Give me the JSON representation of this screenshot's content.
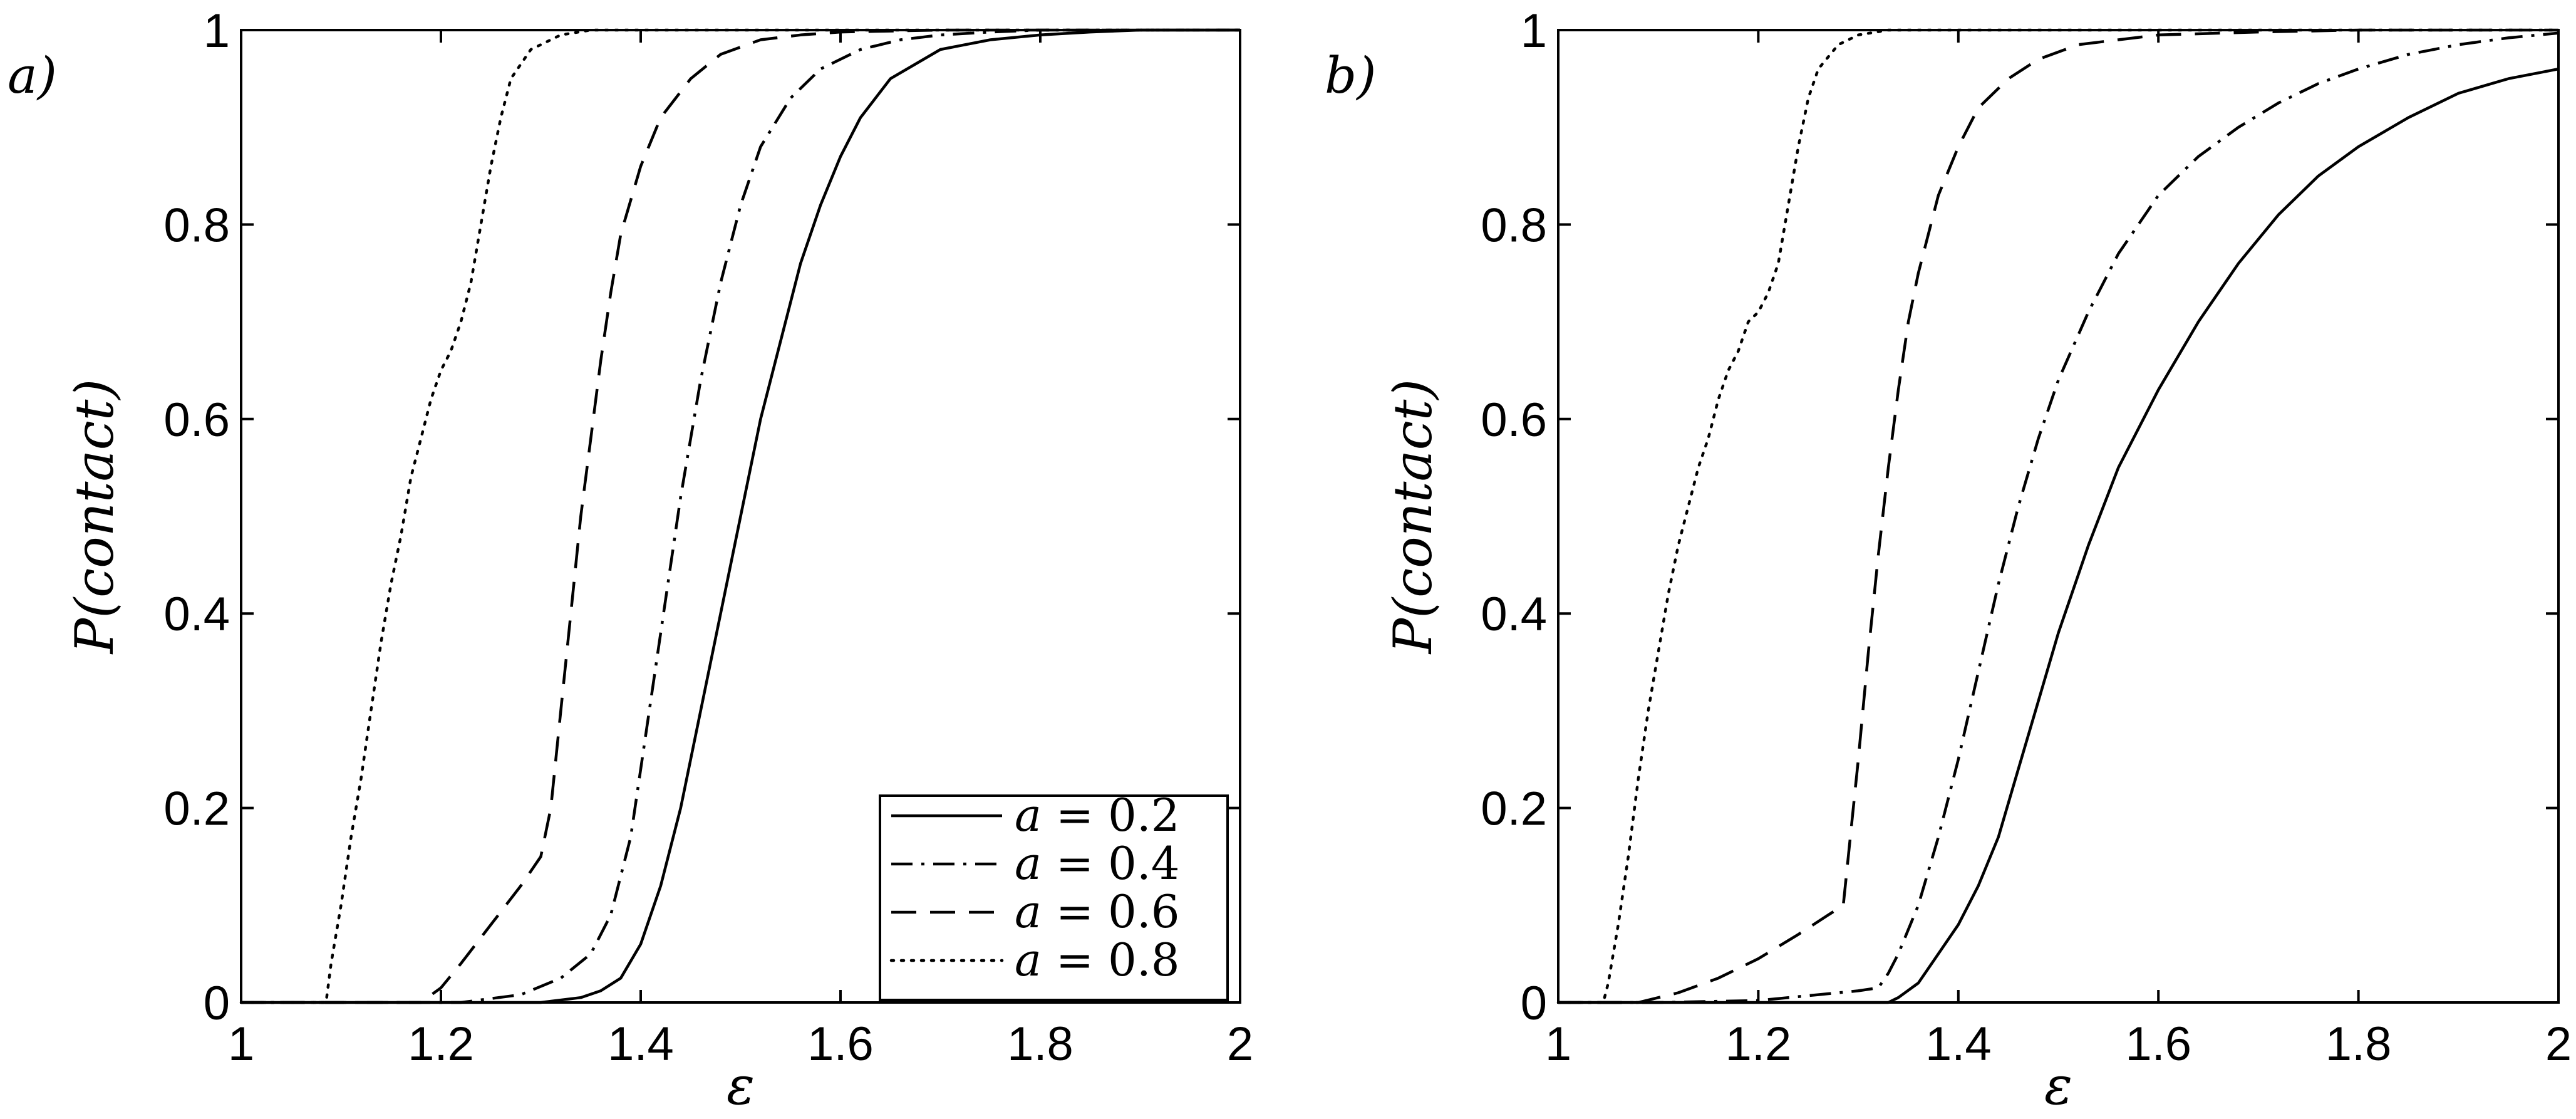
{
  "chart_data": [
    {
      "type": "line",
      "panel_label": "a)",
      "xlabel": "ε",
      "ylabel": "P(contact)",
      "xlim": [
        1,
        2
      ],
      "ylim": [
        0,
        1
      ],
      "xticks": [
        1,
        1.2,
        1.4,
        1.6,
        1.8,
        2
      ],
      "xtick_labels": [
        "1",
        "1.2",
        "1.4",
        "1.6",
        "1.8",
        "2"
      ],
      "yticks": [
        0,
        0.2,
        0.4,
        0.6,
        0.8,
        1
      ],
      "ytick_labels": [
        "0",
        "0.2",
        "0.4",
        "0.6",
        "0.8",
        "1"
      ],
      "grid": false,
      "legend": {
        "position": "bottom-right",
        "entries": [
          {
            "var": "a",
            "text": " = 0.2",
            "style": "solid"
          },
          {
            "var": "a",
            "text": " = 0.4",
            "style": "dash-dot"
          },
          {
            "var": "a",
            "text": " = 0.6",
            "style": "dashed"
          },
          {
            "var": "a",
            "text": " = 0.8",
            "style": "dotted"
          }
        ]
      },
      "series": [
        {
          "style": "solid",
          "x": [
            1.0,
            1.3,
            1.34,
            1.36,
            1.38,
            1.4,
            1.42,
            1.44,
            1.46,
            1.48,
            1.5,
            1.52,
            1.54,
            1.56,
            1.58,
            1.6,
            1.62,
            1.65,
            1.7,
            1.75,
            1.8,
            1.85,
            1.9,
            2.0
          ],
          "y": [
            0,
            0,
            0.005,
            0.012,
            0.025,
            0.06,
            0.12,
            0.2,
            0.3,
            0.4,
            0.5,
            0.6,
            0.68,
            0.76,
            0.82,
            0.87,
            0.91,
            0.95,
            0.98,
            0.99,
            0.995,
            0.998,
            1.0,
            1.0
          ]
        },
        {
          "style": "dash-dot",
          "x": [
            1.0,
            1.22,
            1.28,
            1.32,
            1.35,
            1.37,
            1.39,
            1.4,
            1.42,
            1.44,
            1.46,
            1.48,
            1.5,
            1.52,
            1.55,
            1.58,
            1.62,
            1.66,
            1.7,
            1.75,
            1.8,
            2.0
          ],
          "y": [
            0,
            0,
            0.008,
            0.025,
            0.05,
            0.09,
            0.17,
            0.24,
            0.38,
            0.52,
            0.64,
            0.74,
            0.82,
            0.88,
            0.93,
            0.96,
            0.98,
            0.99,
            0.995,
            0.998,
            1.0,
            1.0
          ]
        },
        {
          "style": "dashed",
          "x": [
            1.0,
            1.18,
            1.2,
            1.22,
            1.25,
            1.28,
            1.3,
            1.31,
            1.32,
            1.33,
            1.34,
            1.35,
            1.36,
            1.37,
            1.38,
            1.4,
            1.42,
            1.45,
            1.48,
            1.52,
            1.56,
            1.6,
            1.7,
            2.0
          ],
          "y": [
            0,
            0,
            0.015,
            0.04,
            0.08,
            0.12,
            0.15,
            0.2,
            0.3,
            0.4,
            0.5,
            0.58,
            0.66,
            0.73,
            0.79,
            0.86,
            0.91,
            0.95,
            0.975,
            0.99,
            0.995,
            0.998,
            1.0,
            1.0
          ]
        },
        {
          "style": "dotted",
          "x": [
            1.0,
            1.085,
            1.09,
            1.1,
            1.11,
            1.12,
            1.13,
            1.14,
            1.15,
            1.16,
            1.17,
            1.18,
            1.19,
            1.2,
            1.21,
            1.22,
            1.23,
            1.24,
            1.25,
            1.26,
            1.27,
            1.29,
            1.32,
            1.35,
            2.0
          ],
          "y": [
            0,
            0,
            0.04,
            0.1,
            0.17,
            0.23,
            0.3,
            0.37,
            0.43,
            0.48,
            0.54,
            0.58,
            0.62,
            0.65,
            0.67,
            0.7,
            0.74,
            0.8,
            0.86,
            0.91,
            0.95,
            0.98,
            0.995,
            1.0,
            1.0
          ]
        }
      ]
    },
    {
      "type": "line",
      "panel_label": "b)",
      "xlabel": "ε",
      "ylabel": "P(contact)",
      "xlim": [
        1,
        2
      ],
      "ylim": [
        0,
        1
      ],
      "xticks": [
        1,
        1.2,
        1.4,
        1.6,
        1.8,
        2
      ],
      "xtick_labels": [
        "1",
        "1.2",
        "1.4",
        "1.6",
        "1.8",
        "2"
      ],
      "yticks": [
        0,
        0.2,
        0.4,
        0.6,
        0.8,
        1
      ],
      "ytick_labels": [
        "0",
        "0.2",
        "0.4",
        "0.6",
        "0.8",
        "1"
      ],
      "grid": false,
      "series": [
        {
          "style": "solid",
          "x": [
            1.0,
            1.33,
            1.34,
            1.36,
            1.38,
            1.4,
            1.42,
            1.44,
            1.46,
            1.48,
            1.5,
            1.53,
            1.56,
            1.6,
            1.64,
            1.68,
            1.72,
            1.76,
            1.8,
            1.85,
            1.9,
            1.95,
            2.0
          ],
          "y": [
            0,
            0,
            0.005,
            0.02,
            0.05,
            0.08,
            0.12,
            0.17,
            0.24,
            0.31,
            0.38,
            0.47,
            0.55,
            0.63,
            0.7,
            0.76,
            0.81,
            0.85,
            0.88,
            0.91,
            0.935,
            0.95,
            0.96
          ]
        },
        {
          "style": "dash-dot",
          "x": [
            1.0,
            1.1,
            1.2,
            1.26,
            1.3,
            1.32,
            1.33,
            1.34,
            1.36,
            1.38,
            1.4,
            1.42,
            1.44,
            1.46,
            1.48,
            1.5,
            1.53,
            1.56,
            1.6,
            1.64,
            1.68,
            1.72,
            1.76,
            1.8,
            1.85,
            1.9,
            1.95,
            2.0
          ],
          "y": [
            0,
            0,
            0.002,
            0.008,
            0.012,
            0.015,
            0.03,
            0.05,
            0.1,
            0.17,
            0.25,
            0.34,
            0.43,
            0.51,
            0.58,
            0.64,
            0.71,
            0.77,
            0.83,
            0.87,
            0.9,
            0.925,
            0.945,
            0.96,
            0.975,
            0.985,
            0.992,
            0.997
          ]
        },
        {
          "style": "dashed",
          "x": [
            1.0,
            1.08,
            1.12,
            1.16,
            1.2,
            1.24,
            1.27,
            1.285,
            1.29,
            1.3,
            1.31,
            1.32,
            1.33,
            1.34,
            1.35,
            1.36,
            1.37,
            1.38,
            1.4,
            1.42,
            1.45,
            1.48,
            1.52,
            1.56,
            1.6,
            1.7,
            1.8,
            2.0
          ],
          "y": [
            0,
            0,
            0.01,
            0.025,
            0.045,
            0.07,
            0.09,
            0.1,
            0.15,
            0.25,
            0.36,
            0.46,
            0.55,
            0.63,
            0.7,
            0.75,
            0.79,
            0.83,
            0.88,
            0.92,
            0.95,
            0.97,
            0.985,
            0.99,
            0.995,
            0.998,
            1.0,
            1.0
          ]
        },
        {
          "style": "dotted",
          "x": [
            1.0,
            1.045,
            1.05,
            1.06,
            1.07,
            1.08,
            1.09,
            1.1,
            1.11,
            1.12,
            1.13,
            1.14,
            1.15,
            1.16,
            1.17,
            1.18,
            1.19,
            1.2,
            1.21,
            1.22,
            1.23,
            1.24,
            1.25,
            1.26,
            1.28,
            1.3,
            1.33,
            2.0
          ],
          "y": [
            0,
            0,
            0.02,
            0.08,
            0.15,
            0.23,
            0.3,
            0.36,
            0.42,
            0.47,
            0.51,
            0.55,
            0.58,
            0.62,
            0.65,
            0.67,
            0.7,
            0.71,
            0.73,
            0.76,
            0.82,
            0.88,
            0.93,
            0.96,
            0.985,
            0.995,
            1.0,
            1.0
          ]
        }
      ]
    }
  ]
}
